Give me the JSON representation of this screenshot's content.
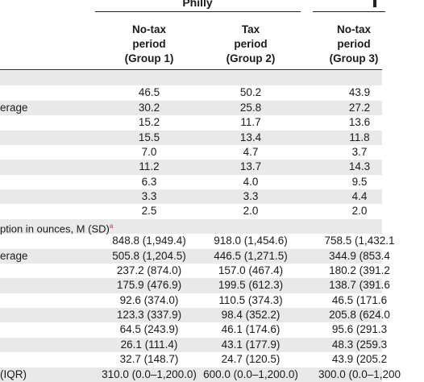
{
  "header": {
    "group_title": "Philly",
    "columns": [
      {
        "line1": "No-tax",
        "line2": "period",
        "line3": "(Group 1)"
      },
      {
        "line1": "Tax",
        "line2": "period",
        "line3": "(Group 2)"
      },
      {
        "line1": "No-tax",
        "line2": "period",
        "line3": "(Group 3)"
      }
    ]
  },
  "section1": {
    "rows": [
      {
        "label": "",
        "v1": "",
        "v2": "",
        "v3": ""
      },
      {
        "label": "",
        "v1": "46.5",
        "v2": "50.2",
        "v3": "43.9"
      },
      {
        "label": "erage",
        "v1": "30.2",
        "v2": "25.8",
        "v3": "27.2"
      },
      {
        "label": "",
        "v1": "15.2",
        "v2": "11.7",
        "v3": "13.6"
      },
      {
        "label": "",
        "v1": "15.5",
        "v2": "13.4",
        "v3": "11.8"
      },
      {
        "label": "",
        "v1": "7.0",
        "v2": "4.7",
        "v3": "3.7"
      },
      {
        "label": "",
        "v1": "11.2",
        "v2": "13.7",
        "v3": "14.3"
      },
      {
        "label": "",
        "v1": "6.3",
        "v2": "4.0",
        "v3": "9.5"
      },
      {
        "label": "",
        "v1": "3.3",
        "v2": "3.3",
        "v3": "4.4"
      },
      {
        "label": "",
        "v1": "2.5",
        "v2": "2.0",
        "v3": "2.0"
      }
    ]
  },
  "section2": {
    "title": "ption in ounces, M (SD)",
    "title_sup": "a",
    "rows": [
      {
        "label": "",
        "v1": "848.8 (1,949.4)",
        "v2": "918.0 (1,454.6)",
        "v3": "758.5 (1,432.1"
      },
      {
        "label": "erage",
        "v1": "505.8 (1,204.5)",
        "v2": "446.5 (1,271.5)",
        "v3": "344.9 (853.4"
      },
      {
        "label": "",
        "v1": "237.2 (874.0)",
        "v2": "157.0 (467.4)",
        "v3": "180.2 (391.2"
      },
      {
        "label": "",
        "v1": "175.9 (476.9)",
        "v2": "199.5 (612.3)",
        "v3": "138.7 (391.6"
      },
      {
        "label": "",
        "v1": "92.6 (374.0)",
        "v2": "110.5 (374.3)",
        "v3": "46.5 (171.6"
      },
      {
        "label": "",
        "v1": "123.3 (337.9)",
        "v2": "98.4 (352.2)",
        "v3": "205.8 (624.0"
      },
      {
        "label": "",
        "v1": "64.5 (243.9)",
        "v2": "46.1 (174.6)",
        "v3": "95.6 (291.3"
      },
      {
        "label": "",
        "v1": "26.1 (111.4)",
        "v2": "43.1 (177.9)",
        "v3": "48.3 (259.3"
      },
      {
        "label": "",
        "v1": "32.7 (148.7)",
        "v2": "24.7 (120.5)",
        "v3": "43.9 (205.2"
      },
      {
        "label": "(IQR)",
        "v1": "310.0 (0.0–1,200.0)",
        "v2": "600.0 (0.0–1,200.0)",
        "v3": "300.0 (0.0–1,200"
      }
    ]
  }
}
